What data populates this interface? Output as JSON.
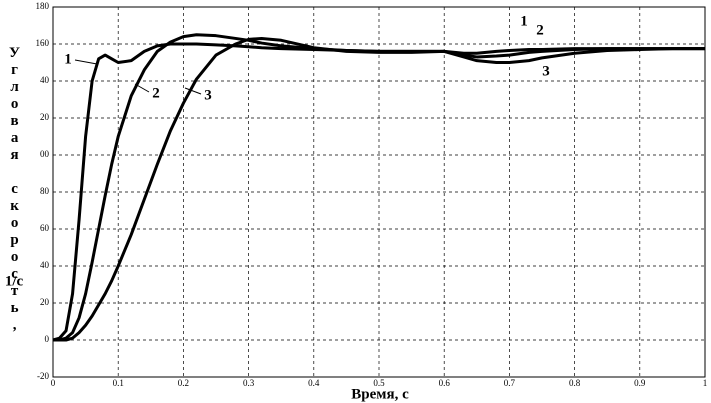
{
  "chart_data": {
    "type": "line",
    "x_label": "Время, с",
    "y_label": [
      "Угловая скорость,",
      "1/с"
    ],
    "x": [
      0,
      0.01,
      0.02,
      0.03,
      0.04,
      0.05,
      0.06,
      0.07,
      0.08,
      0.09,
      0.1,
      0.12,
      0.14,
      0.16,
      0.18,
      0.2,
      0.22,
      0.25,
      0.28,
      0.3,
      0.32,
      0.35,
      0.4,
      0.45,
      0.5,
      0.55,
      0.6,
      0.63,
      0.65,
      0.68,
      0.7,
      0.73,
      0.75,
      0.8,
      0.85,
      0.9,
      0.95,
      1
    ],
    "series": [
      {
        "name": "1",
        "color": "#000000",
        "values": [
          0,
          1,
          5,
          25,
          65,
          110,
          140,
          152,
          154,
          152,
          150,
          151,
          156,
          159,
          160,
          160,
          160,
          159.5,
          159,
          158.5,
          158,
          157.5,
          157,
          156.5,
          156,
          156,
          156,
          155,
          155,
          156,
          156.5,
          157,
          157,
          157.5,
          157.5,
          157.5,
          157.5,
          157.5
        ]
      },
      {
        "name": "2",
        "color": "#000000",
        "values": [
          0,
          0,
          1,
          4,
          12,
          25,
          42,
          60,
          78,
          95,
          110,
          132,
          146,
          156,
          161,
          164,
          165,
          164.5,
          163,
          162,
          160.5,
          159,
          157.5,
          156.5,
          156,
          156,
          156,
          154,
          153,
          153.5,
          154,
          155.5,
          156,
          157,
          157.5,
          157.5,
          157.5,
          157.5
        ]
      },
      {
        "name": "3",
        "color": "#000000",
        "values": [
          0,
          0,
          0,
          1,
          4,
          8,
          13,
          19,
          25,
          32,
          40,
          57,
          76,
          95,
          113,
          128,
          141,
          154,
          160,
          162.5,
          163,
          162,
          158,
          156,
          155.5,
          155.5,
          156,
          153,
          151,
          150,
          150,
          151,
          152.5,
          155,
          156.5,
          157,
          157.5,
          157.5
        ]
      }
    ],
    "xlim": [
      0,
      1
    ],
    "xticks": [
      0,
      0.1,
      0.2,
      0.3,
      0.4,
      0.5,
      0.6,
      0.7,
      0.8,
      0.9,
      1
    ],
    "ylim": [
      -20,
      180
    ],
    "yticks": [
      -20,
      0,
      20,
      40,
      60,
      80,
      {
        "value": 100,
        "label": "00"
      },
      {
        "value": 120,
        "label": "20"
      },
      {
        "value": 140,
        "label": "40"
      },
      160,
      180
    ],
    "grid": true
  }
}
